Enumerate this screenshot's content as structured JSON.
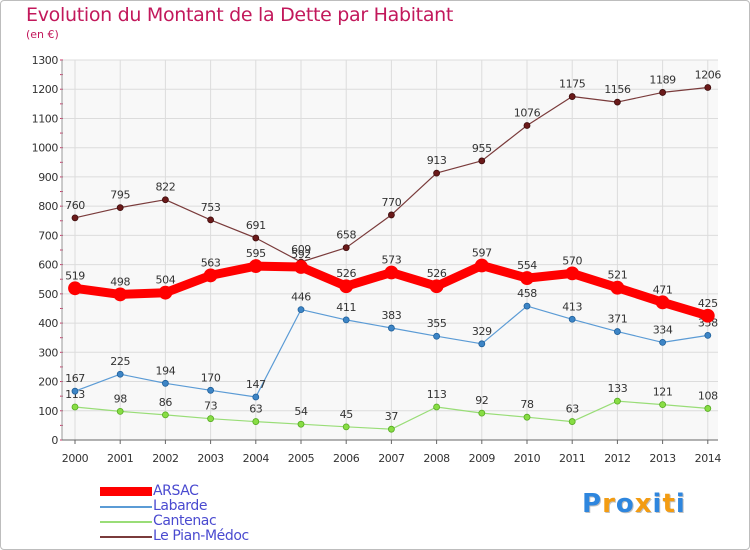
{
  "chart_data": {
    "type": "line",
    "title": "Evolution du Montant de la Dette par Habitant",
    "subtitle": "(en €)",
    "x": [
      "2000",
      "2001",
      "2002",
      "2003",
      "2004",
      "2005",
      "2006",
      "2007",
      "2008",
      "2009",
      "2010",
      "2011",
      "2012",
      "2013",
      "2014"
    ],
    "ylim": [
      0,
      1300
    ],
    "yticks": [
      "0",
      "100",
      "200",
      "300",
      "400",
      "500",
      "600",
      "700",
      "800",
      "900",
      "1000",
      "1100",
      "1200",
      "1300"
    ],
    "grid": true,
    "legend_position": "bottom-left",
    "series": [
      {
        "name": "ARSAC",
        "color": "#ff0000",
        "values": [
          519,
          498,
          504,
          563,
          595,
          592,
          526,
          573,
          526,
          597,
          554,
          570,
          521,
          471,
          425
        ]
      },
      {
        "name": "Labarde",
        "color": "#5b9bd5",
        "values": [
          167,
          225,
          194,
          170,
          147,
          446,
          411,
          383,
          355,
          329,
          458,
          413,
          371,
          334,
          358
        ]
      },
      {
        "name": "Cantenac",
        "color": "#99dd77",
        "values": [
          113,
          98,
          86,
          73,
          63,
          54,
          45,
          37,
          113,
          92,
          78,
          63,
          133,
          121,
          108
        ]
      },
      {
        "name": "Le Pian-Médoc",
        "color": "#7a3b3b",
        "values": [
          760,
          795,
          822,
          753,
          691,
          609,
          658,
          770,
          913,
          955,
          1076,
          1175,
          1156,
          1189,
          1206
        ]
      }
    ]
  },
  "brand": {
    "letters": [
      "P",
      "r",
      "o",
      "x",
      "i",
      "t",
      "i"
    ],
    "colors": [
      "#2e86de",
      "#f39c12",
      "#2e86de",
      "#f39c12",
      "#2e86de",
      "#f39c12",
      "#2e86de"
    ]
  }
}
